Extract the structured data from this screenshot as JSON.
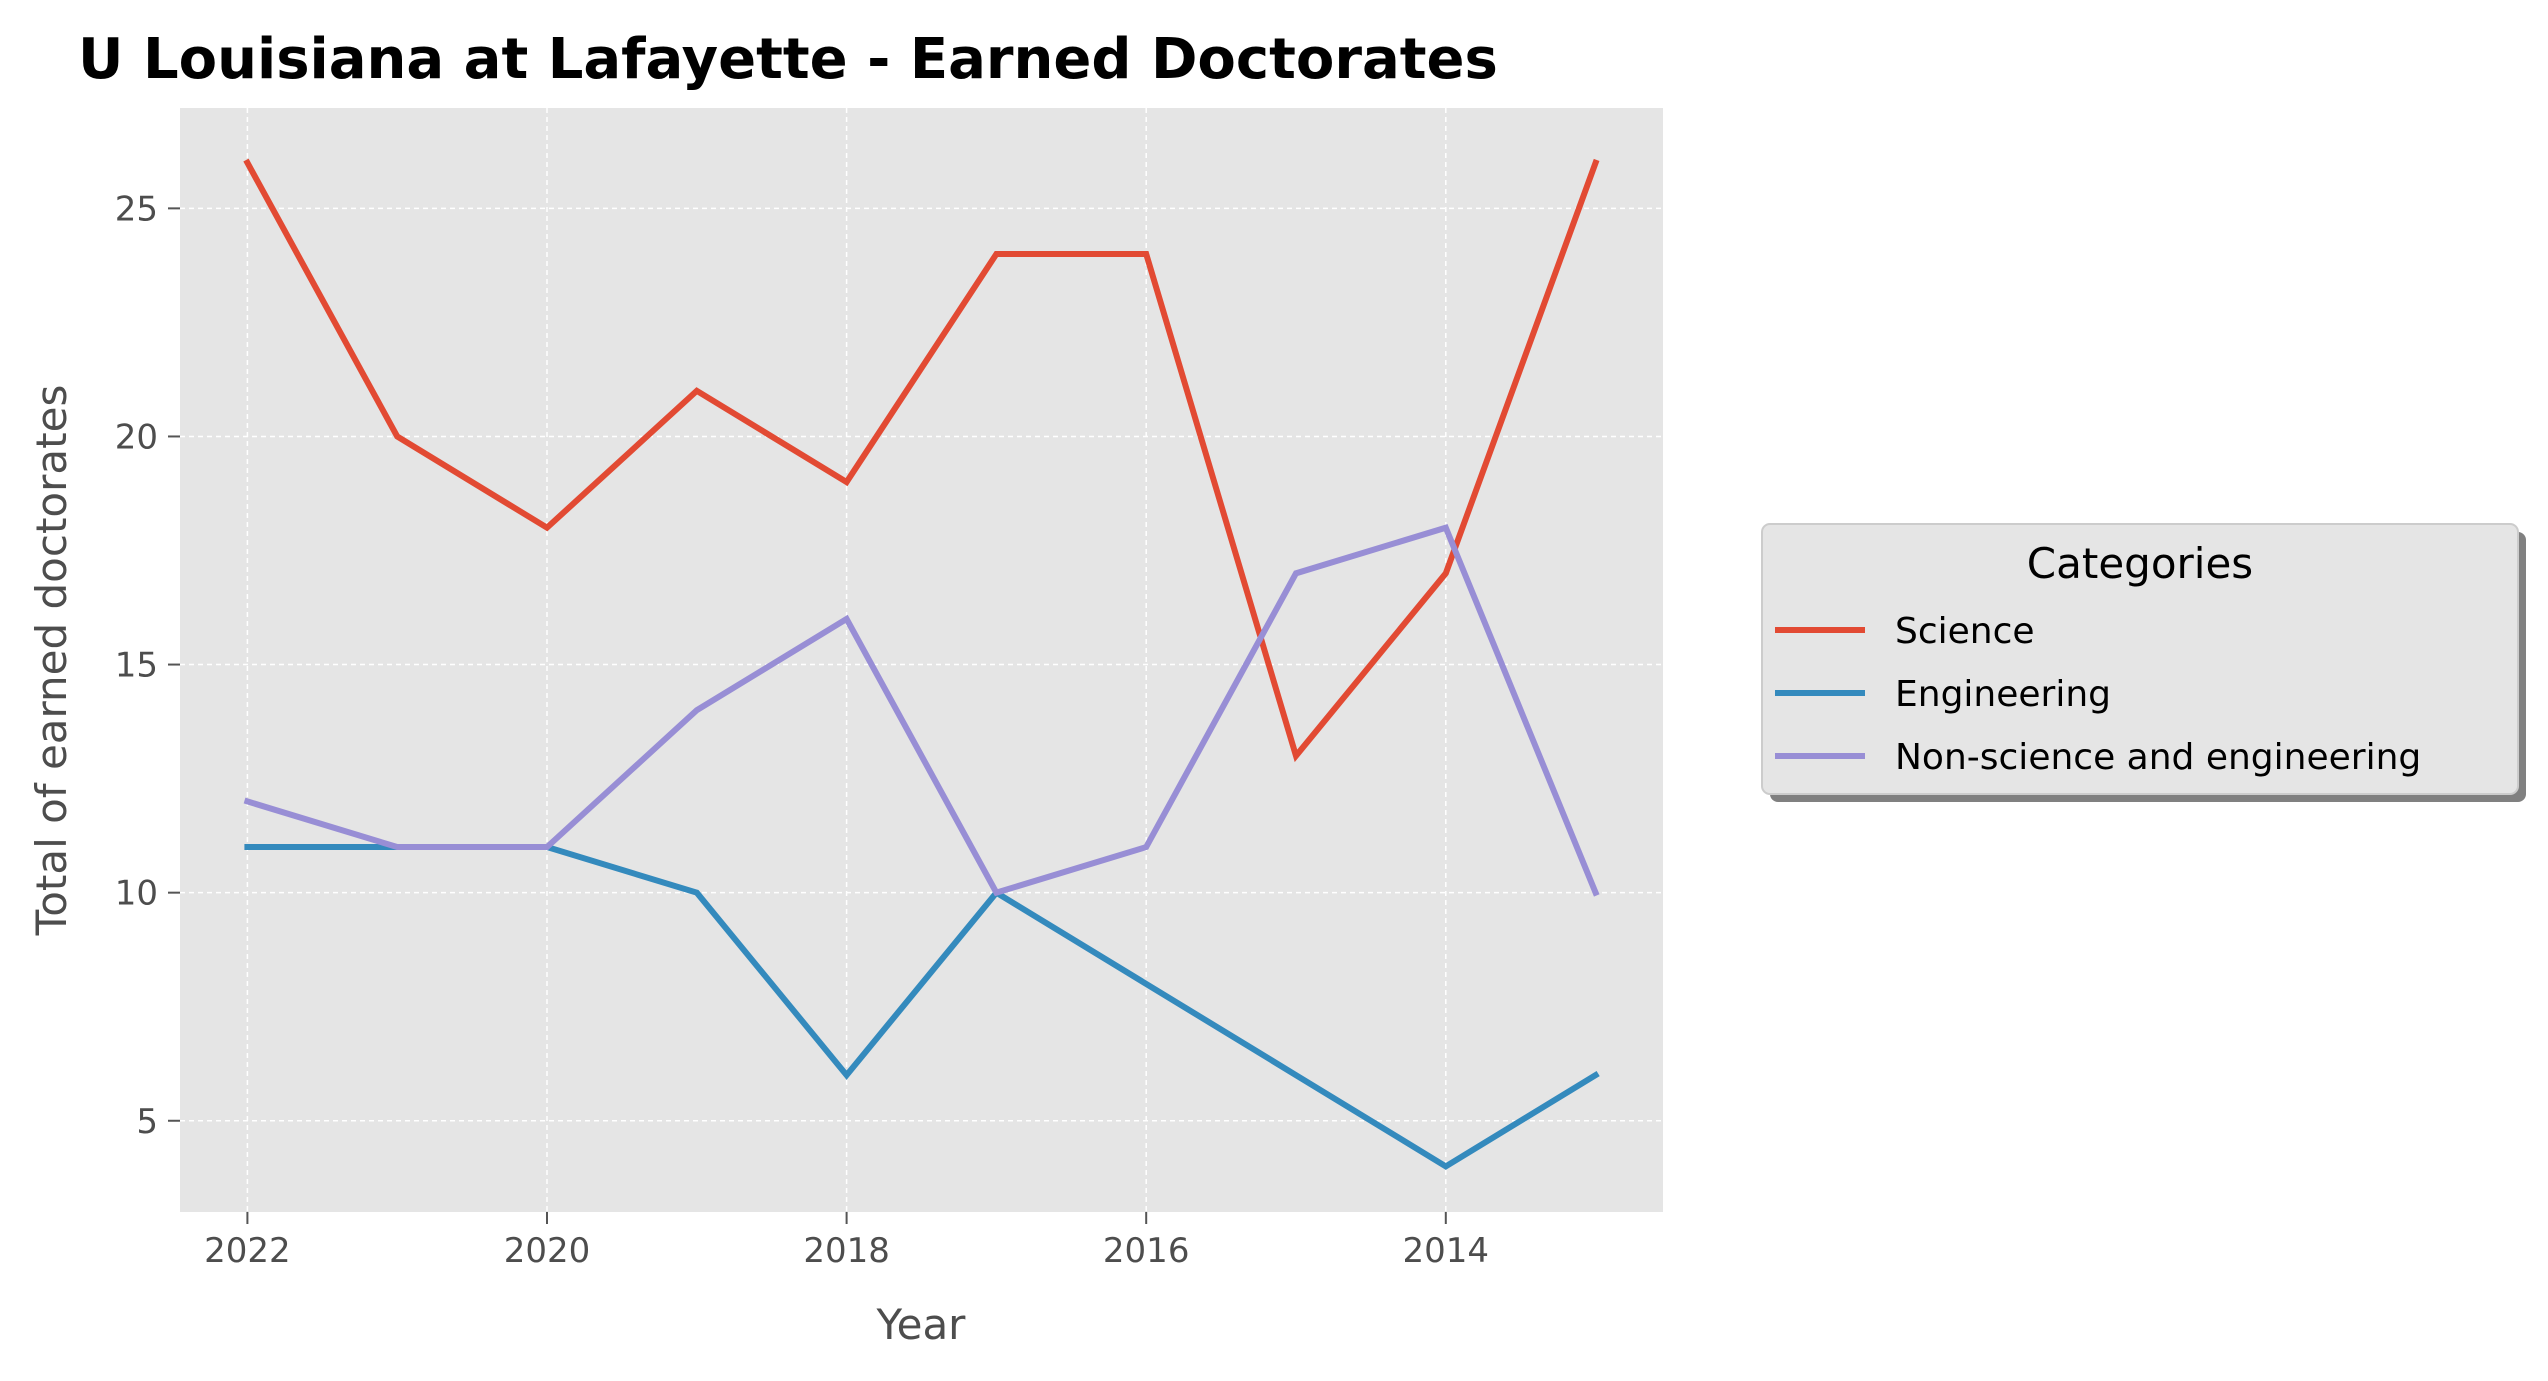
{
  "chart_data": {
    "type": "line",
    "title": "U Louisiana at Lafayette - Earned Doctorates",
    "xlabel": "Year",
    "ylabel": "Total of earned doctorates",
    "x": [
      2022,
      2021,
      2020,
      2019,
      2018,
      2017,
      2016,
      2015,
      2014,
      2013
    ],
    "x_reversed": true,
    "xticks": [
      "2022",
      "2020",
      "2018",
      "2016",
      "2014"
    ],
    "yticks": [
      "5",
      "10",
      "15",
      "20",
      "25"
    ],
    "ylim": [
      3,
      27.2
    ],
    "xlim": [
      2022.45,
      2012.55
    ],
    "grid": true,
    "legend_title": "Categories",
    "legend_position": "right",
    "series": [
      {
        "name": "Science",
        "color": "#E24A33",
        "values": [
          26,
          20,
          18,
          21,
          19,
          24,
          24,
          13,
          17,
          26
        ]
      },
      {
        "name": "Engineering",
        "color": "#348ABD",
        "values": [
          11,
          11,
          11,
          10,
          6,
          10,
          8,
          6,
          4,
          6
        ]
      },
      {
        "name": "Non-science and engineering",
        "color": "#988ED5",
        "values": [
          12,
          11,
          11,
          14,
          16,
          10,
          11,
          17,
          18,
          10
        ]
      }
    ]
  }
}
